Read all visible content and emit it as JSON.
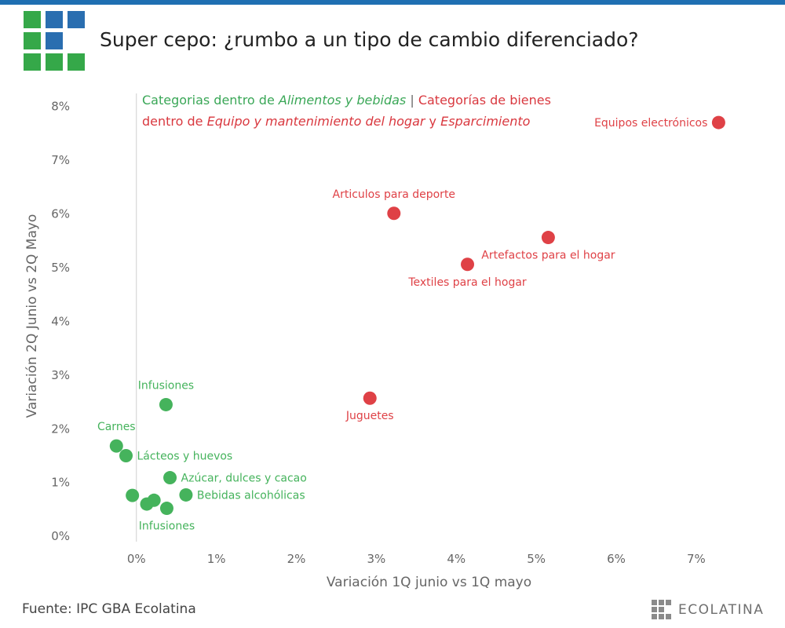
{
  "header": {
    "title": "Super cepo: ¿rumbo a un tipo de cambio diferenciado?"
  },
  "legend": {
    "part1": "Categorias dentro de",
    "part1_em": "Alimentos y bebidas",
    "separator": "|",
    "part2": "Categorías de bienes",
    "part3": "dentro de",
    "part3_em": "Equipo y mantenimiento del hogar",
    "part4": "y",
    "part4_em": "Esparcimiento"
  },
  "footer": {
    "source": "Fuente: IPC GBA Ecolatina",
    "brand": "ECOLATINA"
  },
  "colors": {
    "food": "#45b35c",
    "goods": "#df4146",
    "topbar": "#1f6fb2",
    "logo_green": "#35a849",
    "logo_blue": "#2a6eb0"
  },
  "chart_data": {
    "type": "scatter",
    "title": "Super cepo: ¿rumbo a un tipo de cambio diferenciado?",
    "xlabel": "Variación 1Q junio vs 1Q mayo",
    "ylabel": "Variación 2Q Junio vs 2Q Mayo",
    "xlim": [
      -0.4,
      7.6
    ],
    "ylim": [
      -0.1,
      8.3
    ],
    "xticks": [
      0,
      1,
      2,
      3,
      4,
      5,
      6,
      7
    ],
    "yticks": [
      0,
      1,
      2,
      3,
      4,
      5,
      6,
      7,
      8
    ],
    "xtick_labels": [
      "0%",
      "1%",
      "2%",
      "3%",
      "4%",
      "5%",
      "6%",
      "7%"
    ],
    "ytick_labels": [
      "0%",
      "1%",
      "2%",
      "3%",
      "4%",
      "5%",
      "6%",
      "7%",
      "8%"
    ],
    "grid": false,
    "series": [
      {
        "name": "Categorias dentro de Alimentos y bebidas",
        "color": "#45b35c",
        "points": [
          {
            "x": 0.37,
            "y": 2.45,
            "label": "Infusiones",
            "label_pos": "above"
          },
          {
            "x": -0.25,
            "y": 1.68,
            "label": "Carnes",
            "label_pos": "above"
          },
          {
            "x": -0.13,
            "y": 1.5,
            "label": "Lácteos y huevos",
            "label_pos": "right"
          },
          {
            "x": 0.42,
            "y": 1.09,
            "label": "Azúcar, dulces y cacao",
            "label_pos": "right"
          },
          {
            "x": 0.62,
            "y": 0.77,
            "label": "Bebidas alcohólicas",
            "label_pos": "right"
          },
          {
            "x": -0.05,
            "y": 0.76,
            "label": "",
            "label_pos": "none"
          },
          {
            "x": 0.22,
            "y": 0.67,
            "label": "",
            "label_pos": "none"
          },
          {
            "x": 0.13,
            "y": 0.6,
            "label": "",
            "label_pos": "none"
          },
          {
            "x": 0.38,
            "y": 0.52,
            "label": "Infusiones",
            "label_pos": "below"
          }
        ]
      },
      {
        "name": "Categorías de bienes dentro de Equipo y mantenimiento del hogar y Esparcimiento",
        "color": "#df4146",
        "points": [
          {
            "x": 7.28,
            "y": 7.7,
            "label": "Equipos electrónicos",
            "label_pos": "left"
          },
          {
            "x": 3.22,
            "y": 6.01,
            "label": "Articulos para deporte",
            "label_pos": "above"
          },
          {
            "x": 5.15,
            "y": 5.56,
            "label": "Artefactos para el hogar",
            "label_pos": "below"
          },
          {
            "x": 4.14,
            "y": 5.06,
            "label": "Textiles para el hogar",
            "label_pos": "below"
          },
          {
            "x": 2.92,
            "y": 2.57,
            "label": "Juguetes",
            "label_pos": "below"
          }
        ]
      }
    ]
  }
}
